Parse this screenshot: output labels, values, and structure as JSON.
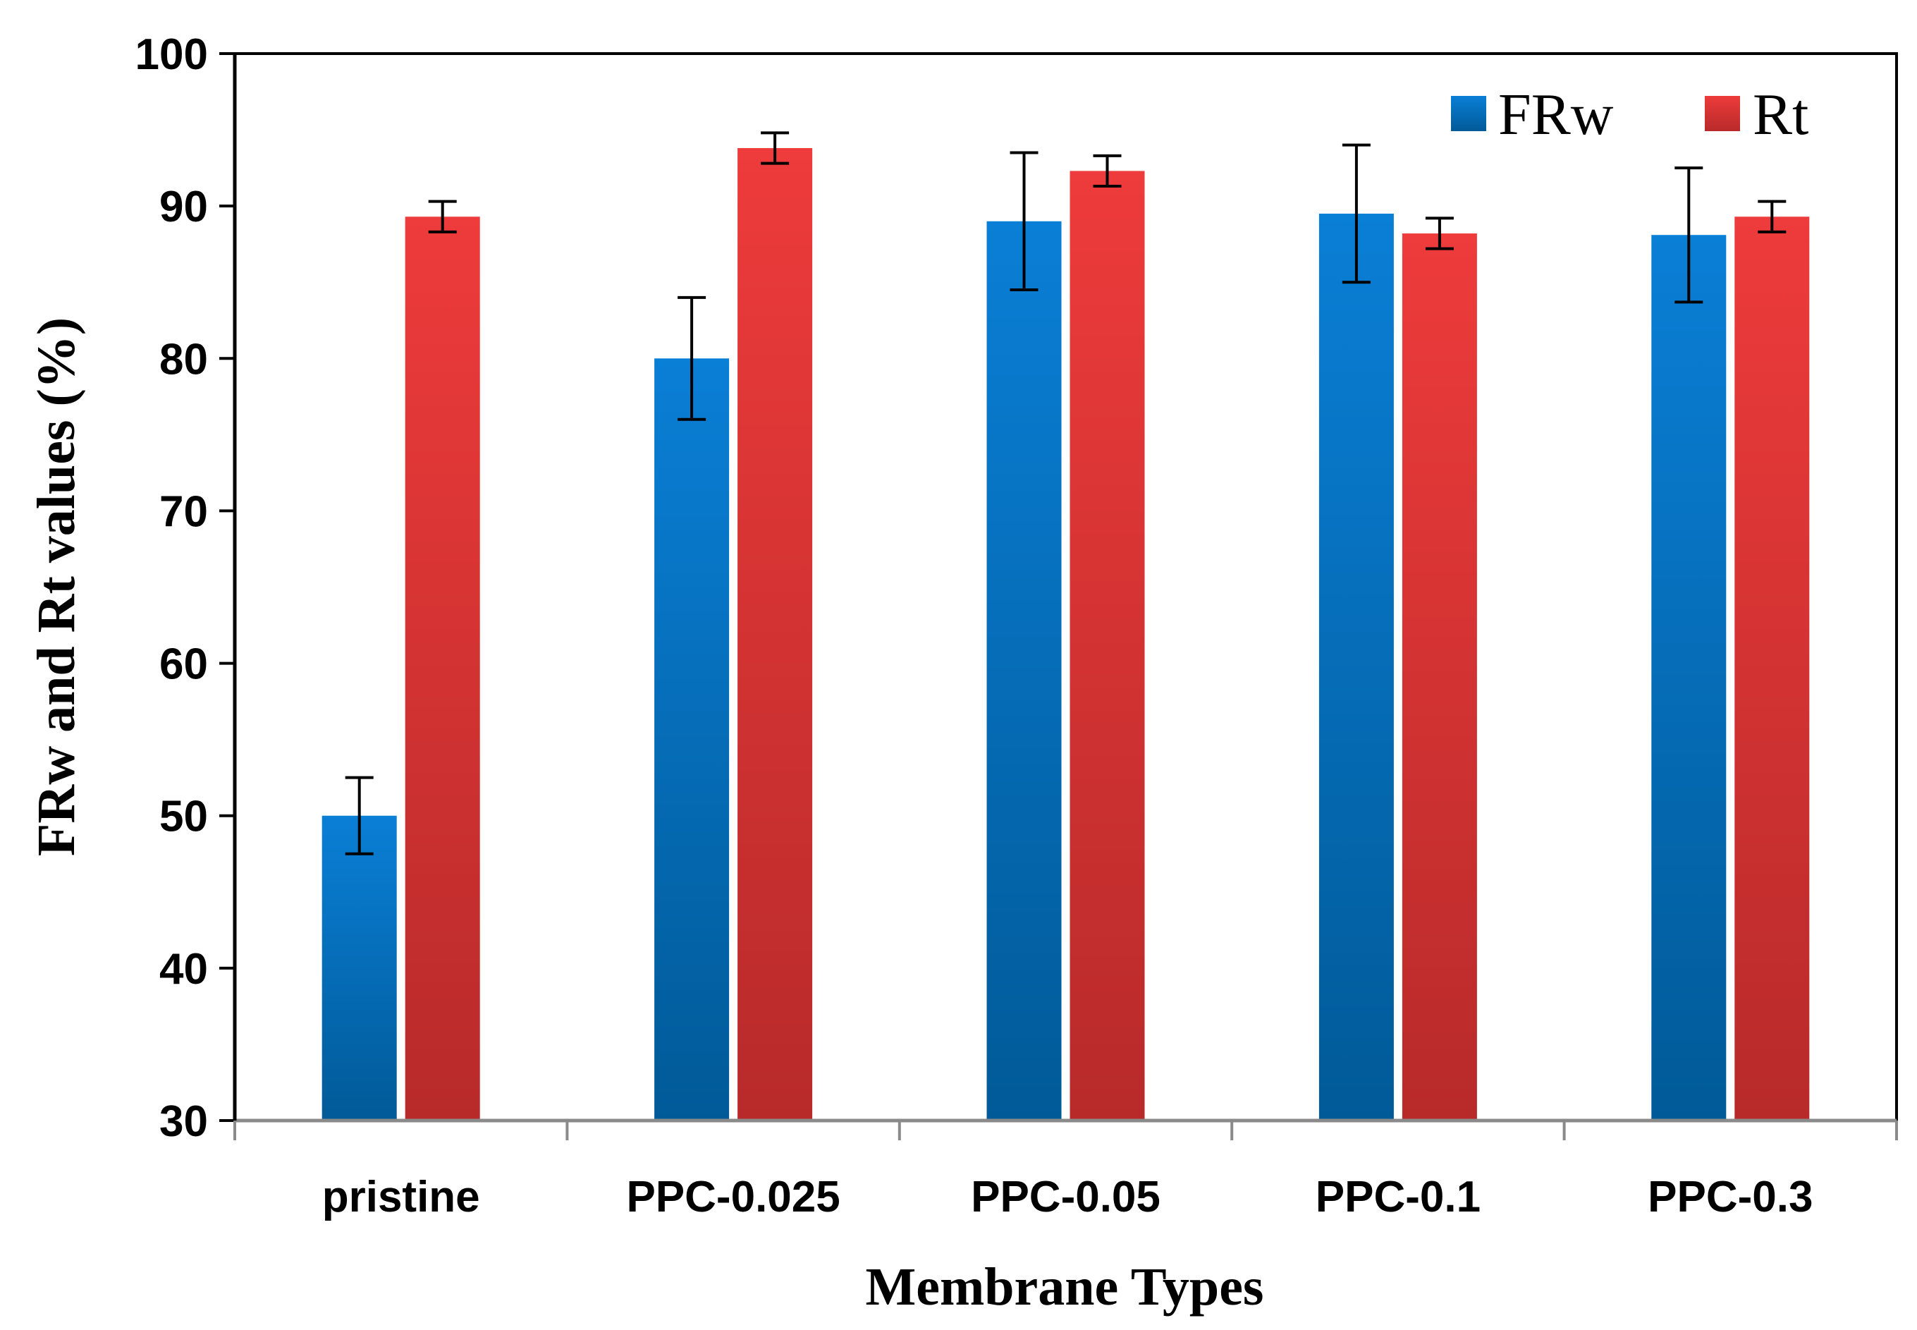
{
  "chart_data": {
    "type": "bar",
    "title": "",
    "xlabel": "Membrane Types",
    "ylabel": "FRw and Rt values (%)",
    "ylim": [
      30,
      100
    ],
    "yticks": [
      "30",
      "40",
      "50",
      "60",
      "70",
      "80",
      "90",
      "100"
    ],
    "categories": [
      "pristine",
      "PPC-0.025",
      "PPC-0.05",
      "PPC-0.1",
      "PPC-0.3"
    ],
    "series": [
      {
        "name": "FRw",
        "color": "#0a78cc",
        "values": [
          50.0,
          80.0,
          89.0,
          89.5,
          88.1
        ],
        "errors": [
          2.5,
          4.0,
          4.5,
          4.5,
          4.4
        ]
      },
      {
        "name": "Rt",
        "color": "#e23a3a",
        "values": [
          89.3,
          93.8,
          92.3,
          88.2,
          89.3
        ],
        "errors": [
          1.0,
          1.0,
          1.0,
          1.0,
          1.0
        ]
      }
    ],
    "grid": false,
    "legend": {
      "position": "top-right"
    }
  }
}
